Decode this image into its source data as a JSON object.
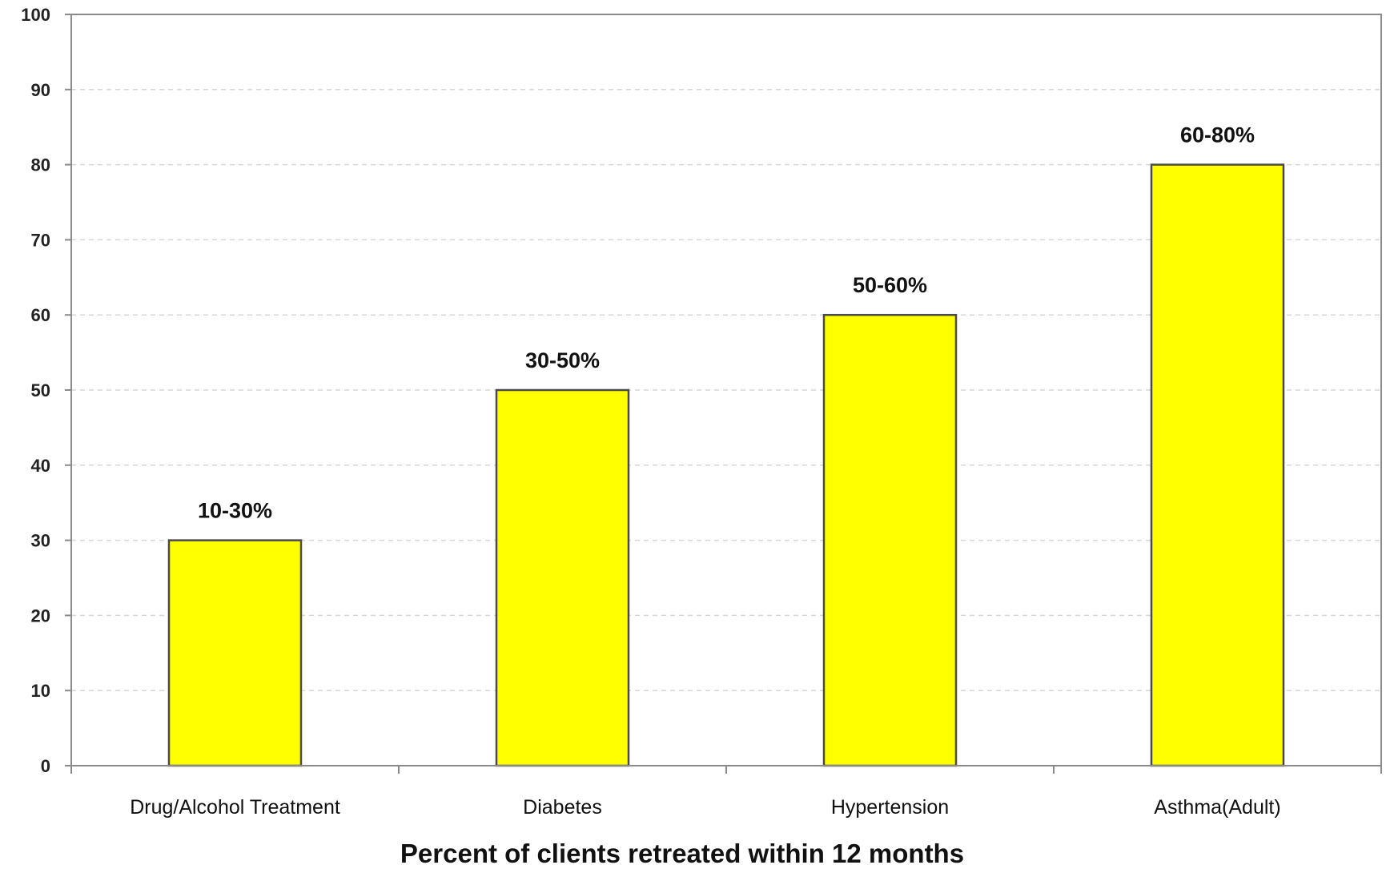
{
  "chart_data": {
    "type": "bar",
    "categories": [
      "Drug/Alcohol Treatment",
      "Diabetes",
      "Hypertension",
      "Asthma(Adult)"
    ],
    "values": [
      30,
      50,
      60,
      80
    ],
    "data_labels": [
      "10-30%",
      "30-50%",
      "50-60%",
      "60-80%"
    ],
    "title": "",
    "xlabel": "Percent of clients retreated within 12 months",
    "ylabel": "",
    "ylim": [
      0,
      100
    ],
    "yticks": [
      "0",
      "10",
      "20",
      "30",
      "40",
      "50",
      "60",
      "70",
      "80",
      "90",
      "100"
    ],
    "grid": true,
    "legend": "none",
    "bar_color": "#ffff00",
    "bar_edge_color": "#4a4a4a"
  }
}
